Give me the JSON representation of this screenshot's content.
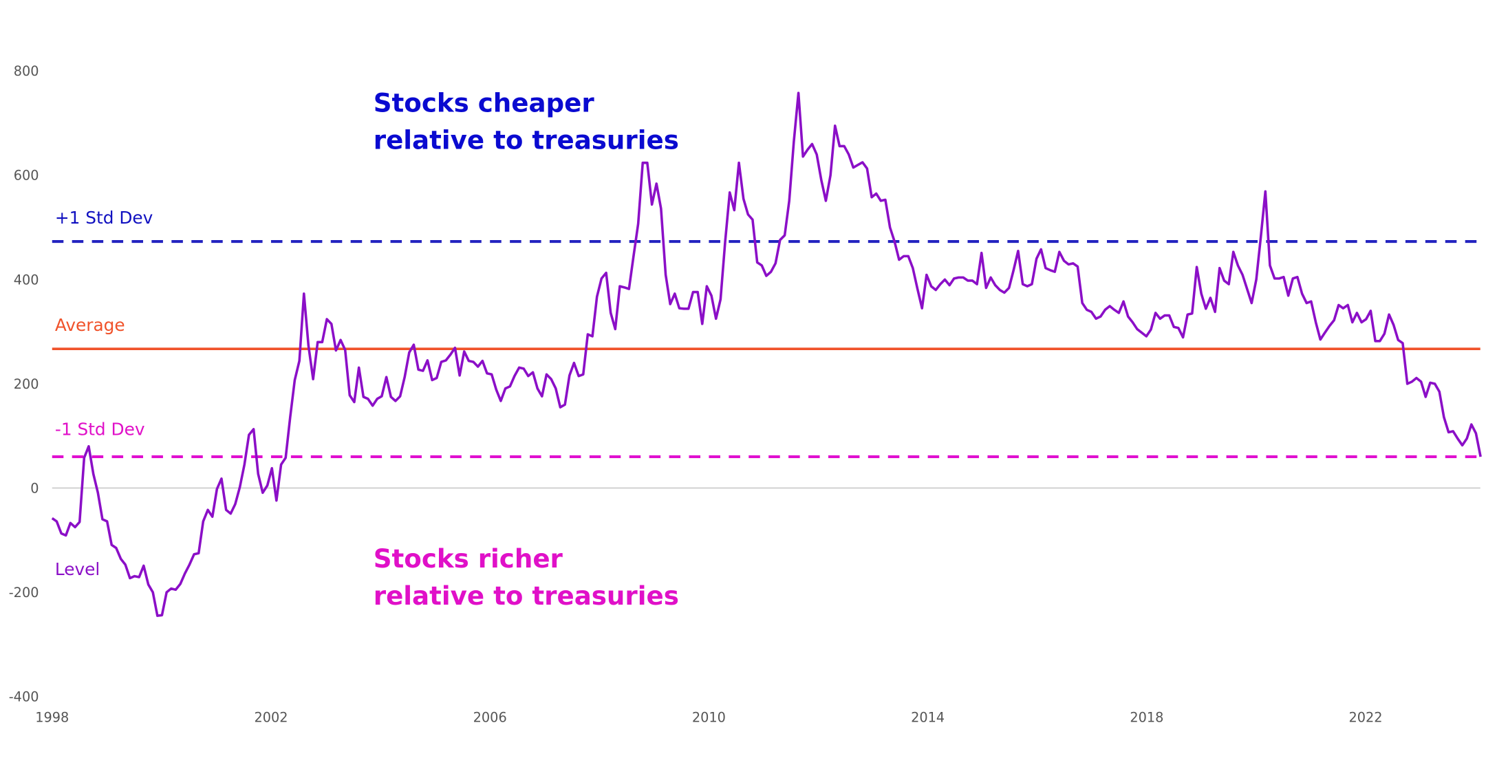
{
  "chart_data": {
    "type": "line",
    "xlim": [
      1998,
      2024.1
    ],
    "ylim": [
      -400,
      800
    ],
    "x_ticks": [
      "1998",
      "2002",
      "2006",
      "2010",
      "2014",
      "2018",
      "2022"
    ],
    "y_ticks": [
      "800",
      "600",
      "400",
      "200",
      "0",
      "-200",
      "-400"
    ],
    "grid": false,
    "series": [
      {
        "name": "Level",
        "color": "#8b0fc7",
        "x_start": 1998,
        "values": [
          -58,
          -64,
          -87,
          -91,
          -67,
          -75,
          -65,
          58,
          80,
          27,
          -9,
          -60,
          -64,
          -109,
          -115,
          -136,
          -147,
          -173,
          -169,
          -171,
          -149,
          -185,
          -200,
          -245,
          -244,
          -200,
          -193,
          -195,
          -184,
          -164,
          -147,
          -127,
          -125,
          -64,
          -42,
          -55,
          -2,
          18,
          -42,
          -49,
          -31,
          2,
          45,
          102,
          113,
          27,
          -9,
          5,
          38,
          -24,
          45,
          58,
          136,
          207,
          244,
          373,
          273,
          209,
          280,
          280,
          324,
          315,
          264,
          284,
          265,
          178,
          165,
          231,
          175,
          171,
          158,
          171,
          176,
          213,
          175,
          167,
          176,
          213,
          260,
          275,
          227,
          225,
          245,
          207,
          211,
          242,
          245,
          256,
          269,
          216,
          262,
          244,
          242,
          233,
          244,
          220,
          218,
          189,
          167,
          191,
          195,
          215,
          231,
          229,
          215,
          222,
          191,
          176,
          218,
          209,
          191,
          155,
          160,
          216,
          240,
          215,
          218,
          295,
          291,
          367,
          402,
          413,
          336,
          305,
          387,
          385,
          382,
          445,
          507,
          624,
          624,
          544,
          584,
          536,
          409,
          353,
          373,
          345,
          344,
          344,
          376,
          376,
          315,
          387,
          369,
          325,
          362,
          473,
          567,
          533,
          624,
          555,
          525,
          515,
          433,
          427,
          407,
          415,
          431,
          476,
          485,
          551,
          664,
          758,
          636,
          649,
          660,
          640,
          591,
          551,
          600,
          695,
          656,
          656,
          640,
          615,
          620,
          625,
          613,
          558,
          565,
          551,
          553,
          500,
          473,
          438,
          445,
          445,
          422,
          382,
          345,
          409,
          387,
          380,
          391,
          400,
          389,
          402,
          404,
          404,
          398,
          398,
          391,
          451,
          384,
          404,
          389,
          380,
          375,
          384,
          418,
          455,
          391,
          387,
          391,
          440,
          458,
          422,
          418,
          415,
          453,
          436,
          429,
          431,
          425,
          355,
          342,
          338,
          325,
          329,
          342,
          349,
          342,
          336,
          358,
          329,
          318,
          305,
          298,
          291,
          304,
          336,
          325,
          331,
          331,
          309,
          307,
          289,
          333,
          335,
          424,
          373,
          344,
          365,
          338,
          422,
          398,
          391,
          453,
          427,
          409,
          382,
          355,
          400,
          482,
          569,
          427,
          402,
          402,
          405,
          369,
          402,
          405,
          373,
          355,
          358,
          318,
          285,
          298,
          311,
          322,
          351,
          345,
          351,
          318,
          336,
          318,
          324,
          340,
          282,
          282,
          296,
          333,
          313,
          284,
          278,
          200,
          204,
          211,
          204,
          175,
          202,
          200,
          185,
          136,
          107,
          109,
          95,
          82,
          95,
          122,
          105,
          60
        ]
      },
      {
        "name": "+1 Std Dev",
        "color": "#2424c0",
        "style": "dashed",
        "value": 473
      },
      {
        "name": "Average",
        "color": "#f0522a",
        "style": "solid",
        "value": 267
      },
      {
        "name": "-1 Std Dev",
        "color": "#e010d0",
        "style": "dashed",
        "value": 60
      }
    ],
    "annotations": {
      "cheaper": [
        "Stocks cheaper",
        "relative to treasuries"
      ],
      "richer": [
        "Stocks richer",
        "relative to treasuries"
      ]
    },
    "annotation_colors": {
      "cheaper": "#0a0ad0",
      "richer": "#e010c8"
    }
  }
}
